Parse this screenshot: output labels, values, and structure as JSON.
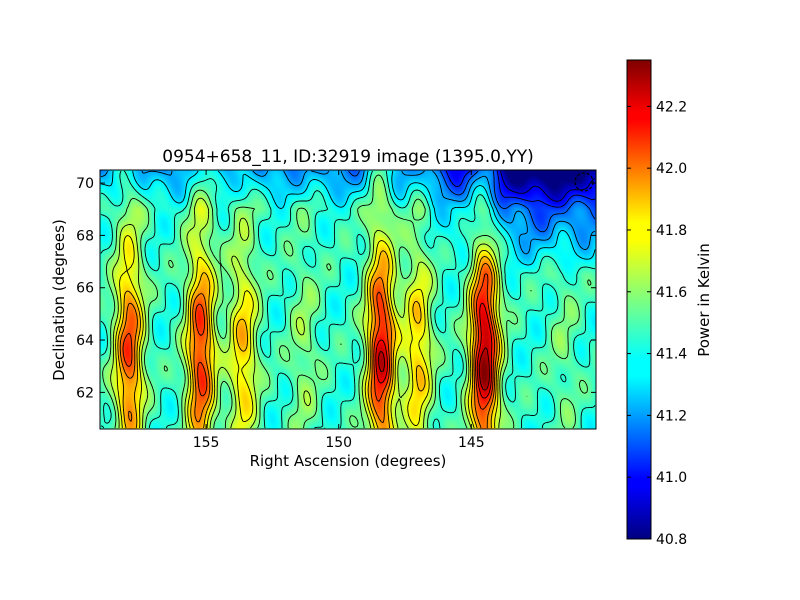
{
  "chart_data": {
    "type": "heatmap",
    "title": "0954+658_11, ID:32919 image (1395.0,YY)",
    "xlabel": "Right Ascension (degrees)",
    "ylabel": "Declination (degrees)",
    "xlim": [
      159.0,
      140.3
    ],
    "ylim": [
      60.6,
      70.5
    ],
    "x_ticks": [
      155,
      150,
      145
    ],
    "x_tick_labels": [
      "155",
      "150",
      "145"
    ],
    "y_ticks": [
      62,
      64,
      66,
      68,
      70
    ],
    "y_tick_labels": [
      "62",
      "64",
      "66",
      "68",
      "70"
    ],
    "colorbar": {
      "label": "Power in Kelvin",
      "range": [
        40.8,
        42.35
      ],
      "ticks": [
        40.8,
        41.0,
        41.2,
        41.4,
        41.6,
        41.8,
        42.0,
        42.2
      ],
      "tick_labels": [
        "40.8",
        "41.0",
        "41.2",
        "41.4",
        "41.6",
        "41.8",
        "42.0",
        "42.2"
      ],
      "colormap": "jet"
    },
    "contours": "black contour lines over image",
    "beam_marker": "dashed circle, top-right corner",
    "stripe_features": [
      {
        "ra": 157.9,
        "peak_kelvin": 42.05
      },
      {
        "ra": 155.2,
        "peak_kelvin": 42.1
      },
      {
        "ra": 153.6,
        "peak_kelvin": 41.85
      },
      {
        "ra": 148.4,
        "peak_kelvin": 42.2
      },
      {
        "ra": 144.5,
        "peak_kelvin": 42.3
      },
      {
        "ra": 151.3,
        "peak_kelvin": 41.6
      },
      {
        "ra": 147.0,
        "peak_kelvin": 41.85
      },
      {
        "ra": 141.5,
        "peak_kelvin": 41.55
      }
    ]
  }
}
